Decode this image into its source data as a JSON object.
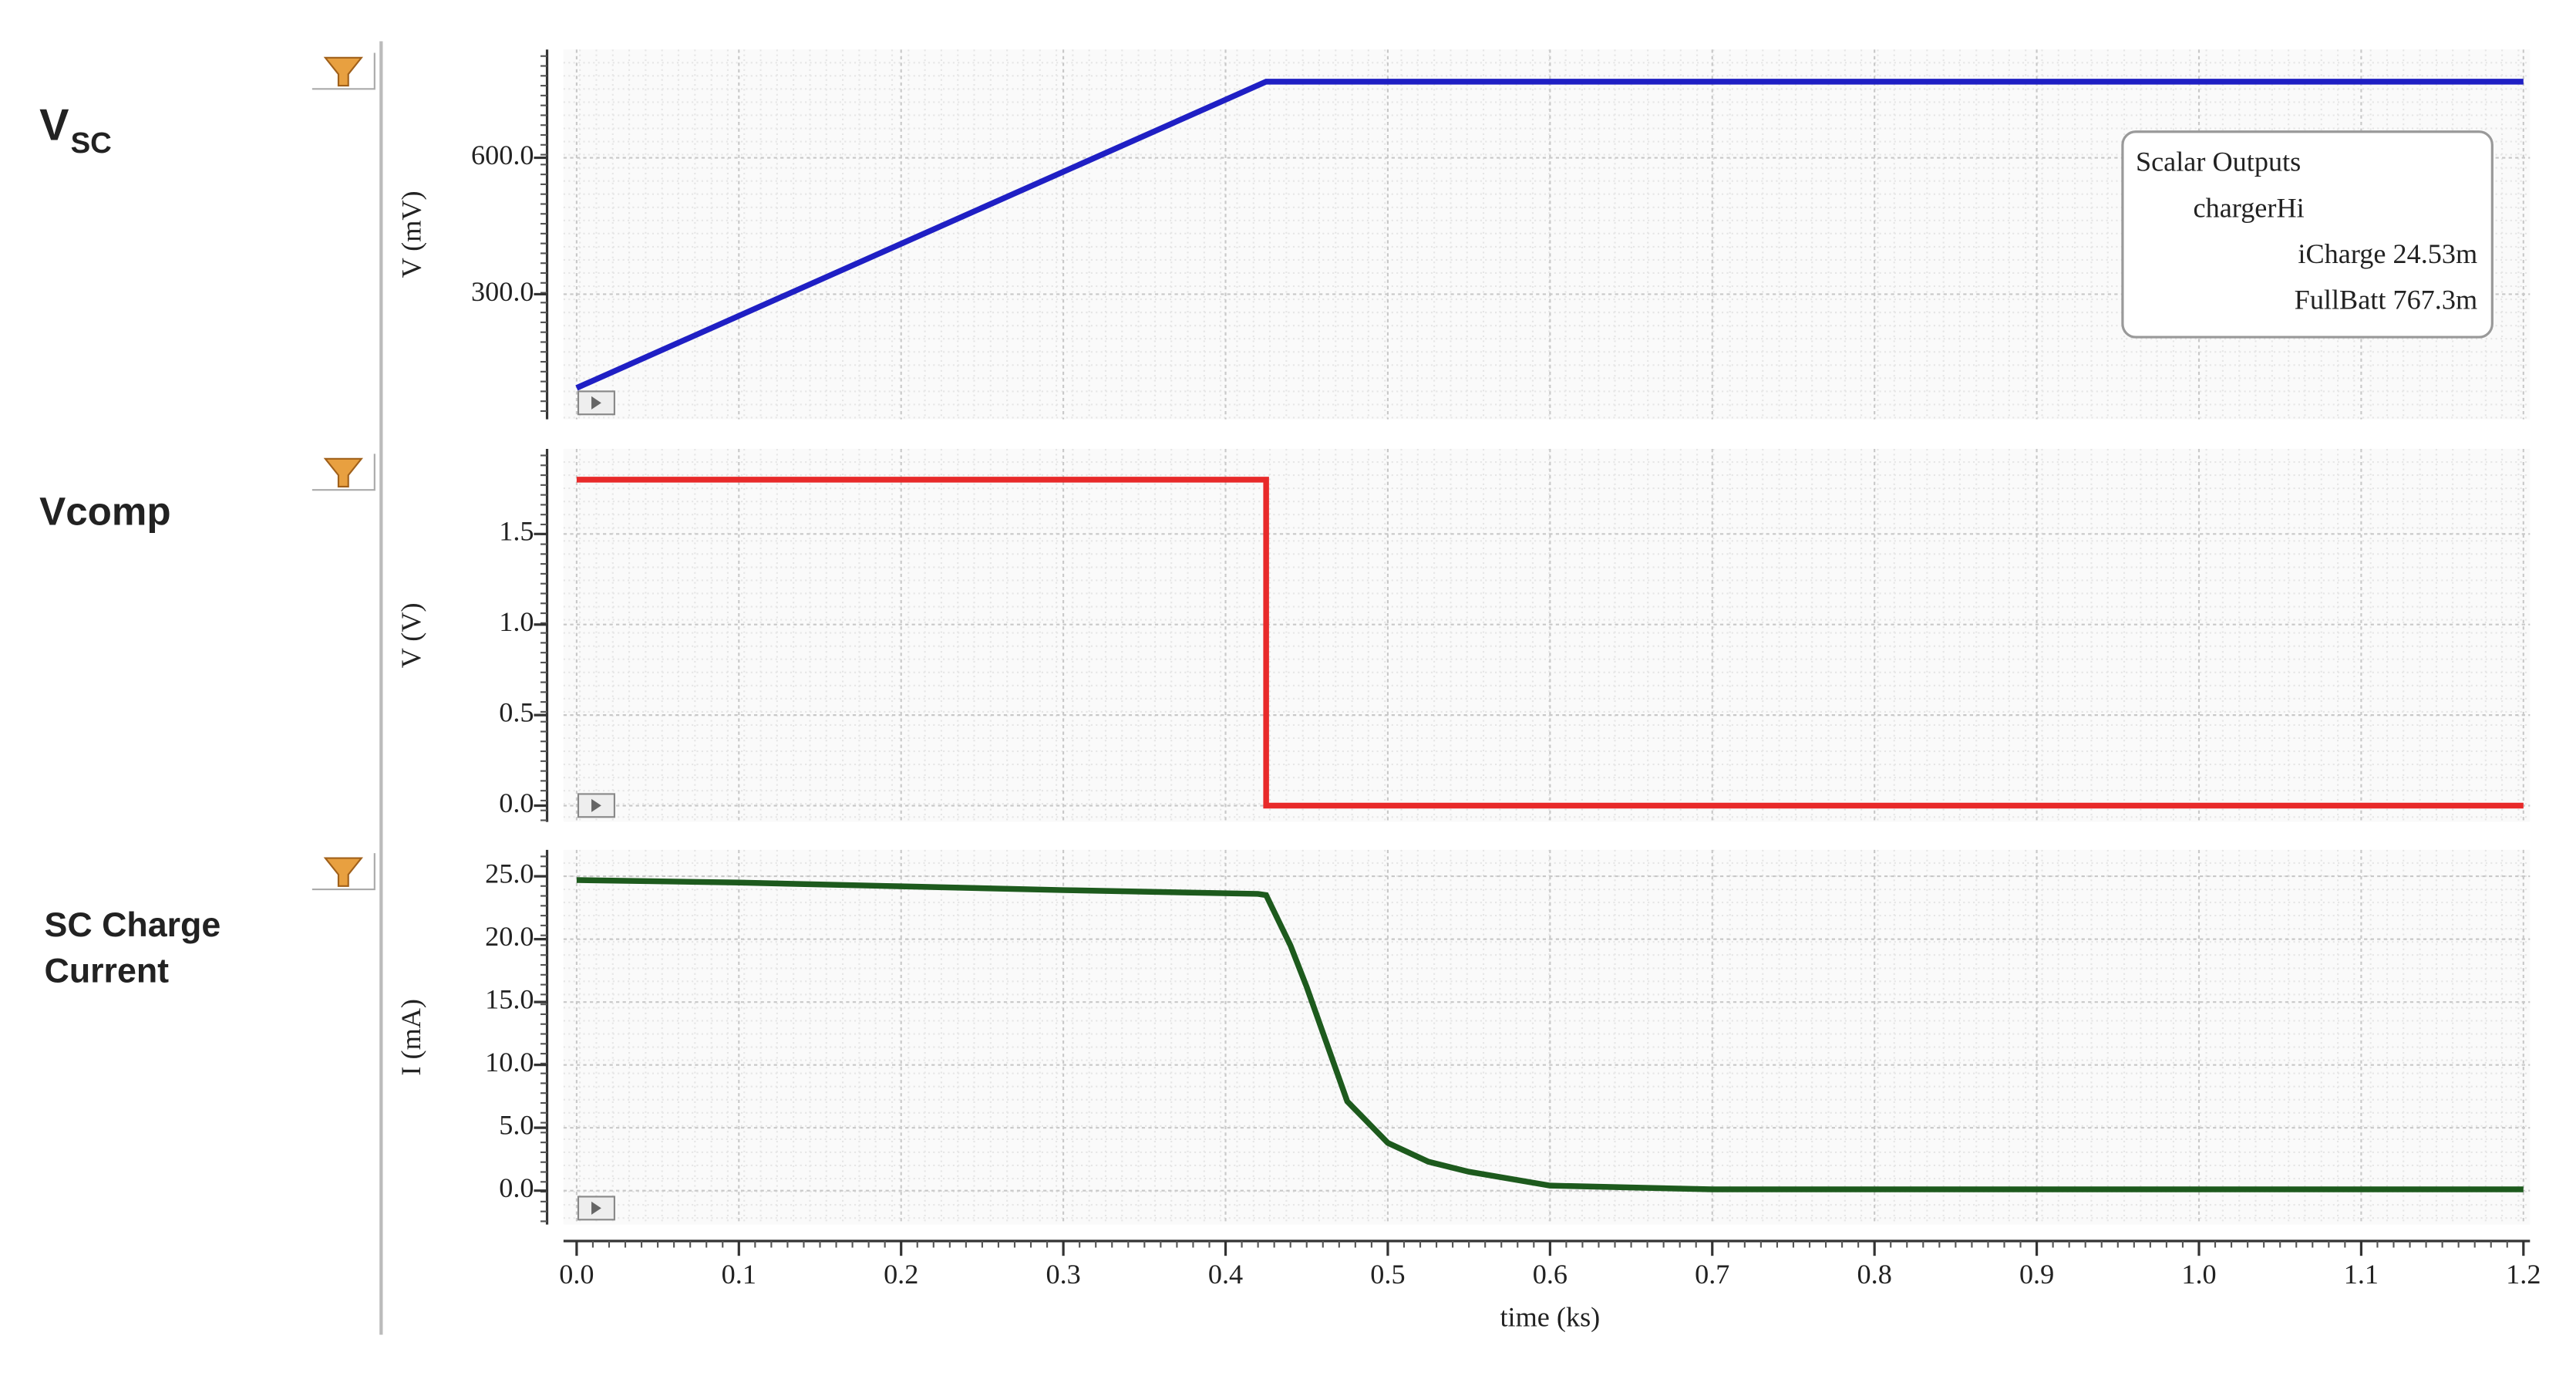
{
  "chart_data": [
    {
      "type": "line",
      "title": "V",
      "title_sub": "SC",
      "title_color": "#2a5ea3",
      "ylabel": "V (mV)",
      "x": [
        0,
        0.425,
        1.2
      ],
      "series": [
        {
          "color": "#1f1fc4",
          "values": [
            94,
            767.3,
            767.3
          ]
        }
      ],
      "xlim": [
        0,
        1.2
      ],
      "ylim": [
        25,
        838
      ],
      "yticks": [
        {
          "value": 300,
          "label": "300.0"
        },
        {
          "value": 600,
          "label": "600.0"
        }
      ],
      "grid": true,
      "annotations": [
        "Scalar Outputs",
        "chargerHi",
        "iCharge 24.53m",
        "FullBatt 767.3m"
      ]
    },
    {
      "type": "line",
      "title": "Vcomp",
      "title_color": "#e8251f",
      "ylabel": "V (V)",
      "x": [
        0,
        0.425,
        0.425,
        1.2
      ],
      "series": [
        {
          "color": "#e82a2a",
          "values": [
            1.8,
            1.8,
            0,
            0
          ]
        }
      ],
      "xlim": [
        0,
        1.2
      ],
      "ylim": [
        -0.09,
        1.97
      ],
      "yticks": [
        {
          "value": 0,
          "label": "0.0"
        },
        0.5,
        {
          "value": 1,
          "label": "1.0"
        },
        1.5
      ],
      "grid": true
    },
    {
      "type": "line",
      "title": "SC Charge Current",
      "title_color": "#3e8a2c",
      "ylabel": "I (mA)",
      "xlabel": "time (ks)",
      "x": [
        0,
        0.1,
        0.2,
        0.3,
        0.42,
        0.425,
        0.44,
        0.45,
        0.475,
        0.5,
        0.525,
        0.55,
        0.6,
        0.7,
        0.9,
        1.2
      ],
      "series": [
        {
          "color": "#1d5a1d",
          "values": [
            24.7,
            24.5,
            24.2,
            23.9,
            23.6,
            23.5,
            19.5,
            16.2,
            7.1,
            3.8,
            2.3,
            1.5,
            0.4,
            0.1,
            0.1,
            0.1
          ]
        }
      ],
      "xlim": [
        0,
        1.2
      ],
      "ylim": [
        -2.7,
        27.1
      ],
      "xticks": [
        {
          "value": 0,
          "label": "0.0"
        },
        0.1,
        0.2,
        0.3,
        0.4,
        0.5,
        0.6,
        0.7,
        0.8,
        0.9,
        {
          "value": 1,
          "label": "1.0"
        },
        1.1,
        1.2
      ],
      "yticks": [
        {
          "value": 0,
          "label": "0.0"
        },
        {
          "value": 5,
          "label": "5.0"
        },
        {
          "value": 10,
          "label": "10.0"
        },
        {
          "value": 15,
          "label": "15.0"
        },
        {
          "value": 20,
          "label": "20.0"
        },
        {
          "value": 25,
          "label": "25.0"
        }
      ],
      "grid": true
    }
  ]
}
